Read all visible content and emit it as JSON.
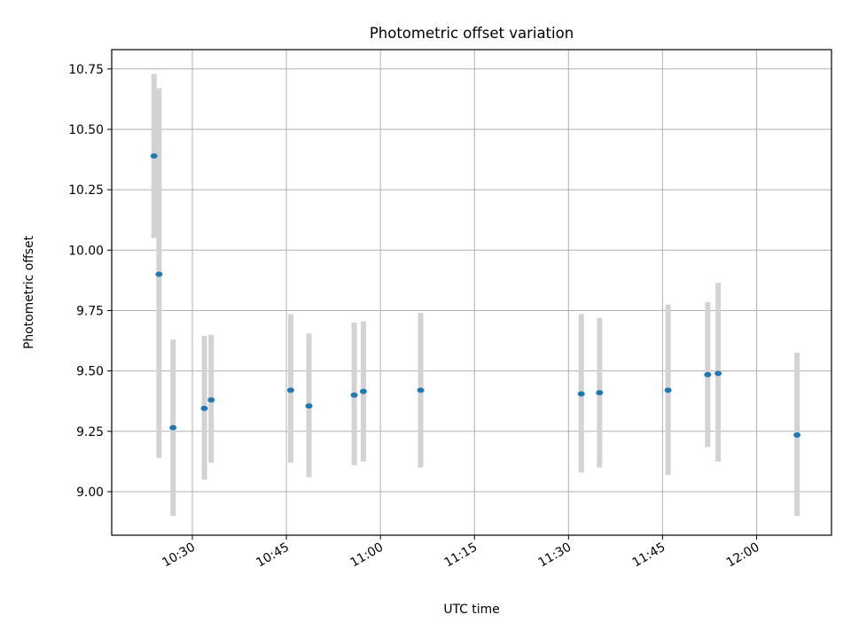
{
  "chart_data": {
    "type": "scatter",
    "title": "Photometric offset variation",
    "xlabel": "UTC time",
    "ylabel": "Photometric offset",
    "x_axis_type": "time",
    "xlim": [
      "10:17:08",
      "12:11:57"
    ],
    "ylim": [
      8.82,
      10.83
    ],
    "grid": true,
    "x_ticks": [
      "10:30",
      "10:45",
      "11:00",
      "11:15",
      "11:30",
      "11:45",
      "12:00"
    ],
    "y_ticks": [
      "9.00",
      "9.25",
      "9.50",
      "9.75",
      "10.00",
      "10.25",
      "10.50",
      "10.75"
    ],
    "point_color": "#1f77b4",
    "errorbar_color": "#d3d3d3",
    "series": [
      {
        "points": [
          {
            "x": "10:23:53",
            "y": 10.39,
            "low": 10.05,
            "high": 10.73
          },
          {
            "x": "10:24:41",
            "y": 9.9,
            "low": 9.14,
            "high": 10.67
          },
          {
            "x": "10:26:55",
            "y": 9.265,
            "low": 8.9,
            "high": 9.63
          },
          {
            "x": "10:31:55",
            "y": 9.345,
            "low": 9.05,
            "high": 9.645
          },
          {
            "x": "10:33:00",
            "y": 9.38,
            "low": 9.12,
            "high": 9.65
          },
          {
            "x": "10:45:41",
            "y": 9.42,
            "low": 9.12,
            "high": 9.735
          },
          {
            "x": "10:48:36",
            "y": 9.355,
            "low": 9.06,
            "high": 9.655
          },
          {
            "x": "10:55:49",
            "y": 9.4,
            "low": 9.11,
            "high": 9.7
          },
          {
            "x": "10:57:17",
            "y": 9.415,
            "low": 9.125,
            "high": 9.705
          },
          {
            "x": "11:06:25",
            "y": 9.42,
            "low": 9.1,
            "high": 9.74
          },
          {
            "x": "11:32:02",
            "y": 9.405,
            "low": 9.08,
            "high": 9.735
          },
          {
            "x": "11:34:57",
            "y": 9.41,
            "low": 9.1,
            "high": 9.72
          },
          {
            "x": "11:45:53",
            "y": 9.42,
            "low": 9.07,
            "high": 9.775
          },
          {
            "x": "11:52:12",
            "y": 9.485,
            "low": 9.185,
            "high": 9.785
          },
          {
            "x": "11:53:52",
            "y": 9.49,
            "low": 9.125,
            "high": 9.865
          },
          {
            "x": "12:06:27",
            "y": 9.235,
            "low": 8.9,
            "high": 9.575
          }
        ]
      }
    ]
  }
}
